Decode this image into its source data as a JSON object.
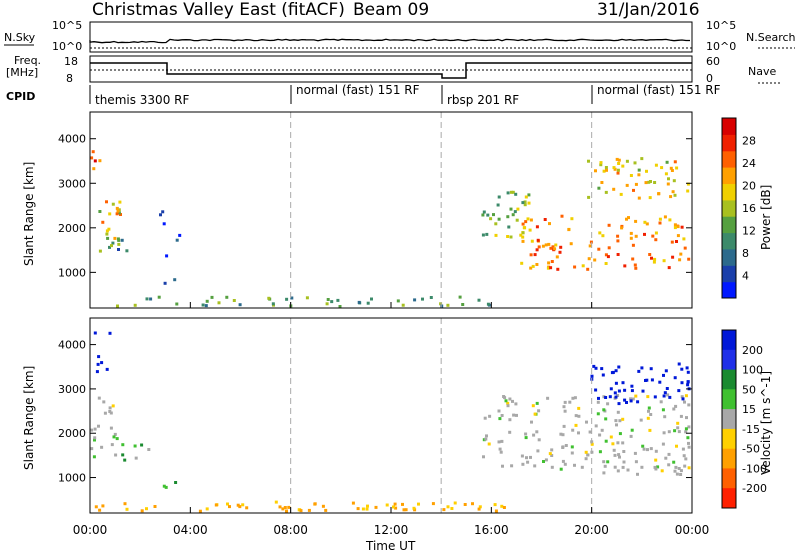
{
  "header": {
    "title": "Christmas Valley East (fitACF)",
    "beam": "Beam 09",
    "date": "31/Jan/2016"
  },
  "strip_sky": {
    "left_label": "N.Sky",
    "right_label": "N.Search",
    "left_ticks": [
      "10^5",
      "10^0"
    ],
    "right_ticks": [
      "10^5",
      "10^0"
    ]
  },
  "strip_freq": {
    "left_label_1": "Freq.",
    "left_label_2": "[MHz]",
    "left_ticks": [
      "18",
      "8"
    ],
    "right_label": "Nave",
    "right_ticks": [
      "60",
      "0"
    ]
  },
  "cpid": {
    "label": "CPID",
    "modes": [
      {
        "start": 0,
        "name": "themis 3300 RF"
      },
      {
        "start": 8,
        "name": "normal (fast) 151 RF"
      },
      {
        "start": 14,
        "name": "rbsp 201 RF"
      },
      {
        "start": 20,
        "name": "normal (fast) 151 RF"
      }
    ]
  },
  "chart_data": [
    {
      "type": "heatmap",
      "panel": "power",
      "ylabel": "Slant Range [km]",
      "ylim": [
        200,
        4600
      ],
      "yticks": [
        1000,
        2000,
        3000,
        4000
      ],
      "xlim": [
        0,
        24
      ],
      "colorbar": {
        "label": "Power [dB]",
        "ticks": [
          "4",
          "8",
          "12",
          "16",
          "20",
          "24",
          "28"
        ],
        "colors": [
          "#0018ff",
          "#1a3faa",
          "#2c6a8c",
          "#3c8a6a",
          "#55a040",
          "#a8c020",
          "#f0d000",
          "#ffa000",
          "#ff6000",
          "#f02000",
          "#d80000"
        ]
      },
      "regions": [
        {
          "t0": 0.0,
          "t1": 0.7,
          "r0": 3300,
          "r1": 3800,
          "level": 0.85
        },
        {
          "t0": 0.2,
          "t1": 1.2,
          "r0": 1400,
          "r1": 2700,
          "level": 0.6
        },
        {
          "t0": 0.6,
          "t1": 1.6,
          "r0": 1300,
          "r1": 1800,
          "level": 0.3
        },
        {
          "t0": 2.7,
          "t1": 3.6,
          "r0": 780,
          "r1": 950,
          "level": 0.2
        },
        {
          "t0": 2.7,
          "t1": 3.6,
          "r0": 1400,
          "r1": 2400,
          "level": 0.15
        },
        {
          "t0": 0.0,
          "t1": 16.5,
          "r0": 220,
          "r1": 480,
          "level": 0.35
        },
        {
          "t0": 15.6,
          "t1": 17.5,
          "r0": 1800,
          "r1": 2900,
          "level": 0.45
        },
        {
          "t0": 17.0,
          "t1": 24.0,
          "r0": 1100,
          "r1": 2300,
          "level": 0.75
        },
        {
          "t0": 19.8,
          "t1": 24.0,
          "r0": 2700,
          "r1": 3600,
          "level": 0.6
        }
      ]
    },
    {
      "type": "heatmap",
      "panel": "velocity",
      "ylabel": "Slant Range [km]",
      "xlabel": "Time UT",
      "ylim": [
        200,
        4600
      ],
      "yticks": [
        1000,
        2000,
        3000,
        4000
      ],
      "xlim": [
        0,
        24
      ],
      "xticks": [
        "00:00",
        "04:00",
        "08:00",
        "12:00",
        "16:00",
        "20:00",
        "00:00"
      ],
      "colorbar": {
        "label": "Velocity [m s^-1]",
        "ticks": [
          "200",
          "100",
          "50",
          "15",
          "-15",
          "-50",
          "-100",
          "-200"
        ],
        "colors": [
          "#0018d8",
          "#2030e8",
          "#1a8a30",
          "#40c030",
          "#a8a8a8",
          "#ffd000",
          "#ffa000",
          "#ff6000",
          "#ff2000"
        ]
      },
      "regions": [
        {
          "t0": 0.0,
          "t1": 0.9,
          "r0": 3300,
          "r1": 4300,
          "v": 200
        },
        {
          "t0": 0.0,
          "t1": 1.1,
          "r0": 1500,
          "r1": 2900,
          "v": 0
        },
        {
          "t0": 1.2,
          "t1": 2.3,
          "r0": 1300,
          "r1": 1800,
          "v": 30
        },
        {
          "t0": 2.7,
          "t1": 3.6,
          "r0": 780,
          "r1": 950,
          "v": 40
        },
        {
          "t0": 0.0,
          "t1": 16.5,
          "r0": 220,
          "r1": 480,
          "v": -40
        },
        {
          "t0": 15.6,
          "t1": 24.0,
          "r0": 1100,
          "r1": 2900,
          "v": 0
        },
        {
          "t0": 19.8,
          "t1": 24.0,
          "r0": 2700,
          "r1": 3600,
          "v": 200
        }
      ]
    }
  ]
}
